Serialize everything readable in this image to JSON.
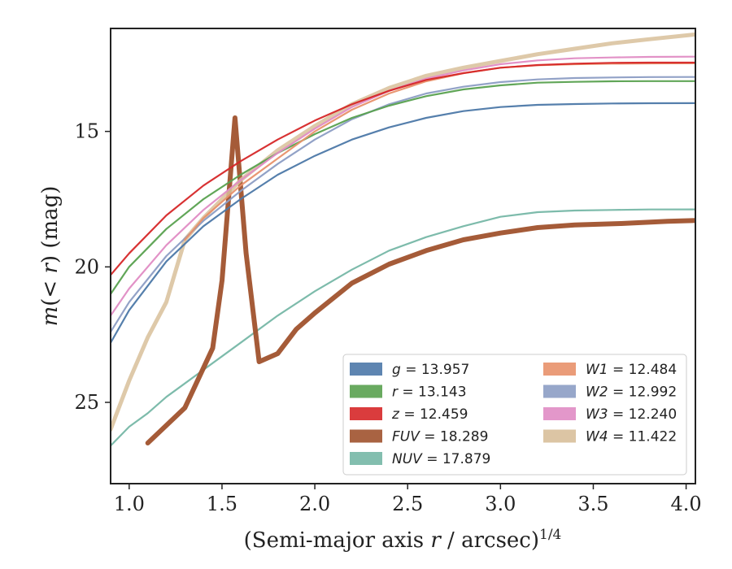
{
  "chart_data": {
    "type": "line",
    "xlabel": "(Semi-major axis r / arcsec)^1/4",
    "xlabel_base": "(Semi-major axis ",
    "xlabel_var": "r",
    "xlabel_rest": " / arcsec)",
    "xlabel_sup": "1/4",
    "ylabel": "m(< r) (mag)",
    "ylabel_prefix": "m",
    "ylabel_mid": "(< ",
    "ylabel_var": "r",
    "ylabel_suffix": ") (mag)",
    "xlim": [
      0.9,
      4.05
    ],
    "ylim": [
      28.0,
      11.2
    ],
    "y_inverted": true,
    "xticks": [
      1.0,
      1.5,
      2.0,
      2.5,
      3.0,
      3.5,
      4.0
    ],
    "xtick_labels": [
      "1.0",
      "1.5",
      "2.0",
      "2.5",
      "3.0",
      "3.5",
      "4.0"
    ],
    "yticks": [
      15,
      20,
      25
    ],
    "ytick_labels": [
      "15",
      "20",
      "25"
    ],
    "grid": false,
    "legend_position": "lower-right",
    "series": [
      {
        "name": "g",
        "label_var": "g",
        "label_value": " = 13.957",
        "color": "#4c78a8",
        "x": [
          0.9,
          1.0,
          1.2,
          1.4,
          1.6,
          1.8,
          2.0,
          2.2,
          2.4,
          2.6,
          2.8,
          3.0,
          3.2,
          3.4,
          3.6,
          3.8,
          4.05
        ],
        "y": [
          22.8,
          21.6,
          19.8,
          18.5,
          17.5,
          16.6,
          15.9,
          15.3,
          14.85,
          14.5,
          14.25,
          14.1,
          14.02,
          13.99,
          13.97,
          13.96,
          13.957
        ]
      },
      {
        "name": "r",
        "label_var": "r",
        "label_value": " = 13.143",
        "color": "#59a14f",
        "x": [
          0.9,
          1.0,
          1.2,
          1.4,
          1.6,
          1.8,
          2.0,
          2.2,
          2.4,
          2.6,
          2.8,
          3.0,
          3.2,
          3.4,
          3.6,
          3.8,
          4.05
        ],
        "y": [
          21.0,
          20.0,
          18.6,
          17.5,
          16.6,
          15.8,
          15.1,
          14.5,
          14.05,
          13.7,
          13.45,
          13.3,
          13.2,
          13.17,
          13.15,
          13.145,
          13.143
        ]
      },
      {
        "name": "z",
        "label_var": "z",
        "label_value": " = 12.459",
        "color": "#d62728",
        "x": [
          0.9,
          1.0,
          1.2,
          1.4,
          1.6,
          1.8,
          2.0,
          2.2,
          2.4,
          2.6,
          2.8,
          3.0,
          3.2,
          3.4,
          3.6,
          3.8,
          4.05
        ],
        "y": [
          20.3,
          19.5,
          18.1,
          17.0,
          16.1,
          15.3,
          14.6,
          14.0,
          13.5,
          13.1,
          12.85,
          12.65,
          12.55,
          12.5,
          12.47,
          12.46,
          12.459
        ]
      },
      {
        "name": "FUV",
        "label_var": "FUV",
        "label_value": " = 18.289",
        "color": "#a0522d",
        "x": [
          1.1,
          1.3,
          1.45,
          1.5,
          1.57,
          1.63,
          1.7,
          1.8,
          1.9,
          2.0,
          2.2,
          2.4,
          2.6,
          2.8,
          3.0,
          3.2,
          3.4,
          3.65,
          3.9,
          4.05
        ],
        "y": [
          26.5,
          25.2,
          23.0,
          20.5,
          14.5,
          19.5,
          23.5,
          23.2,
          22.3,
          21.7,
          20.6,
          19.9,
          19.4,
          19.0,
          18.75,
          18.55,
          18.45,
          18.4,
          18.32,
          18.289
        ]
      },
      {
        "name": "NUV",
        "label_var": "NUV",
        "label_value": " = 17.879",
        "color": "#76b7a6",
        "x": [
          0.9,
          1.0,
          1.1,
          1.2,
          1.3,
          1.4,
          1.5,
          1.6,
          1.8,
          2.0,
          2.2,
          2.4,
          2.6,
          2.8,
          3.0,
          3.2,
          3.4,
          3.6,
          3.8,
          4.05
        ],
        "y": [
          26.6,
          25.9,
          25.4,
          24.8,
          24.3,
          23.8,
          23.3,
          22.8,
          21.8,
          20.9,
          20.1,
          19.4,
          18.9,
          18.5,
          18.15,
          17.98,
          17.92,
          17.9,
          17.88,
          17.879
        ]
      },
      {
        "name": "W1",
        "label_var": "W1",
        "label_value": " = 12.484",
        "color": "#e8916a",
        "x": [
          1.3,
          1.4,
          1.5,
          1.6,
          1.8,
          2.0,
          2.2,
          2.4,
          2.6,
          2.8,
          3.0,
          3.2,
          3.4,
          3.6,
          3.8,
          4.05
        ],
        "y": [
          19.0,
          18.2,
          17.6,
          17.0,
          16.0,
          15.0,
          14.2,
          13.6,
          13.15,
          12.85,
          12.65,
          12.56,
          12.52,
          12.5,
          12.49,
          12.484
        ]
      },
      {
        "name": "W2",
        "label_var": "W2",
        "label_value": " = 12.992",
        "color": "#8c9dc4",
        "x": [
          0.9,
          1.0,
          1.2,
          1.4,
          1.6,
          1.8,
          2.0,
          2.2,
          2.4,
          2.6,
          2.8,
          3.0,
          3.2,
          3.4,
          3.6,
          3.8,
          4.05
        ],
        "y": [
          22.4,
          21.3,
          19.6,
          18.3,
          17.2,
          16.2,
          15.3,
          14.55,
          14.0,
          13.6,
          13.35,
          13.18,
          13.08,
          13.03,
          13.01,
          12.995,
          12.992
        ]
      },
      {
        "name": "W3",
        "label_var": "W3",
        "label_value": " = 12.240",
        "color": "#e08cc4",
        "x": [
          0.9,
          1.0,
          1.2,
          1.4,
          1.6,
          1.8,
          2.0,
          2.2,
          2.4,
          2.6,
          2.8,
          3.0,
          3.2,
          3.4,
          3.6,
          3.8,
          4.05
        ],
        "y": [
          21.8,
          20.8,
          19.2,
          17.9,
          16.8,
          15.8,
          14.9,
          14.1,
          13.5,
          13.05,
          12.75,
          12.52,
          12.38,
          12.3,
          12.27,
          12.25,
          12.24
        ]
      },
      {
        "name": "W4",
        "label_var": "W4",
        "label_value": " = 11.422",
        "color": "#d8bf9a",
        "x": [
          0.9,
          1.0,
          1.1,
          1.2,
          1.3,
          1.4,
          1.5,
          1.6,
          1.8,
          2.0,
          2.2,
          2.4,
          2.6,
          2.8,
          3.0,
          3.2,
          3.4,
          3.6,
          3.8,
          4.05
        ],
        "y": [
          26.0,
          24.2,
          22.6,
          21.3,
          19.0,
          18.2,
          17.5,
          16.8,
          15.7,
          14.8,
          14.0,
          13.4,
          12.95,
          12.65,
          12.4,
          12.15,
          11.95,
          11.75,
          11.6,
          11.422
        ]
      }
    ]
  }
}
